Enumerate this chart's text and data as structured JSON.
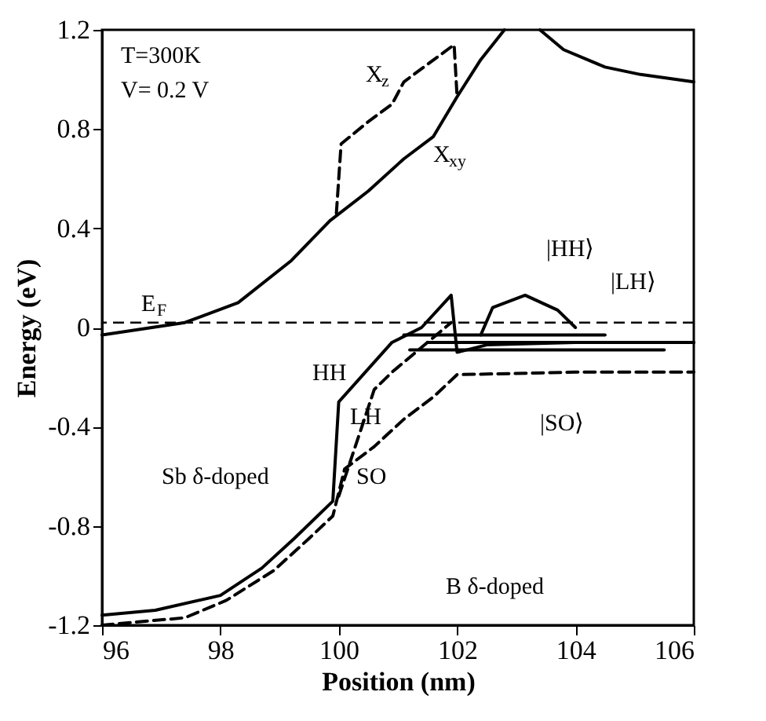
{
  "chart_data": {
    "type": "line",
    "xlabel": "Position (nm)",
    "ylabel": "Energy (eV)",
    "xlim": [
      96,
      106
    ],
    "ylim": [
      -1.2,
      1.2
    ],
    "xticks": [
      96,
      98,
      100,
      102,
      104,
      106
    ],
    "yticks": [
      -1.2,
      -0.8,
      -0.4,
      0,
      0.4,
      0.8,
      1.2
    ],
    "grid": false,
    "series": [
      {
        "color": "#000000",
        "line_style": "solid",
        "x": [
          96,
          97.4,
          98.3,
          99.2,
          99.85,
          100.5,
          101.1,
          101.6,
          102.0,
          102.4,
          102.8
        ],
        "values": [
          -0.03,
          0.02,
          0.1,
          0.27,
          0.43,
          0.55,
          0.68,
          0.77,
          0.93,
          1.08,
          1.2
        ]
      },
      {
        "color": "#000000",
        "line_style": "solid",
        "x": [
          103.4,
          103.8,
          104.5,
          105.1,
          106
        ],
        "values": [
          1.2,
          1.12,
          1.05,
          1.02,
          0.99
        ]
      },
      {
        "color": "#000000",
        "line_style": "dashed",
        "x": [
          99.96,
          100.04,
          100.5,
          100.9,
          101.1,
          101.55,
          101.95,
          102.0
        ],
        "values": [
          0.46,
          0.74,
          0.83,
          0.9,
          0.99,
          1.07,
          1.14,
          0.93
        ]
      },
      {
        "color": "#000000",
        "line_style": "solid",
        "x": [
          96,
          96.9,
          98,
          98.7,
          99.25,
          99.9,
          100,
          100.9,
          101.4,
          101.9,
          102.0,
          102.5,
          104,
          106
        ],
        "values": [
          -1.16,
          -1.14,
          -1.08,
          -0.97,
          -0.85,
          -0.7,
          -0.3,
          -0.06,
          0.0,
          0.13,
          -0.1,
          -0.07,
          -0.06,
          -0.06
        ]
      },
      {
        "color": "#000000",
        "line_style": "dashed",
        "x": [
          100,
          100.6,
          100.9,
          101.4,
          101.9
        ],
        "values": [
          -0.68,
          -0.25,
          -0.18,
          -0.08,
          0.02
        ]
      },
      {
        "color": "#000000",
        "line_style": "dashed",
        "x": [
          96,
          97.4,
          98.1,
          98.9,
          99.5,
          99.9,
          100.1,
          100.6,
          101.1,
          101.6,
          102,
          104,
          106
        ],
        "values": [
          -1.2,
          -1.17,
          -1.1,
          -0.98,
          -0.85,
          -0.76,
          -0.57,
          -0.48,
          -0.37,
          -0.28,
          -0.19,
          -0.18,
          -0.18
        ]
      },
      {
        "color": "#000000",
        "line_style": "solid",
        "x": [
          101.1,
          104.5
        ],
        "values": [
          -0.03,
          -0.03
        ]
      },
      {
        "color": "#000000",
        "line_style": "solid",
        "x": [
          101.5,
          106
        ],
        "values": [
          -0.06,
          -0.06
        ]
      },
      {
        "color": "#000000",
        "line_style": "solid",
        "x": [
          101.2,
          105.5
        ],
        "values": [
          -0.09,
          -0.09
        ]
      },
      {
        "color": "#000000",
        "line_style": "solid",
        "x": [
          102.4,
          102.6,
          103.15,
          103.7,
          104.0
        ],
        "values": [
          -0.03,
          0.08,
          0.13,
          0.07,
          0.0
        ]
      }
    ],
    "ref_lines": [
      {
        "axis": "y",
        "value": 0.02,
        "color": "#000000",
        "line_style": "dashed"
      }
    ],
    "annotations": [
      "T=300K",
      "V= 0.2 V",
      "X$_{z}$",
      "X$_{xy}$",
      "E$_{F}$",
      "HH",
      "LH",
      "SO",
      "|HH⟩",
      "|LH⟩",
      "|SO⟩",
      "Sb δ-doped",
      "B δ-doped"
    ]
  }
}
